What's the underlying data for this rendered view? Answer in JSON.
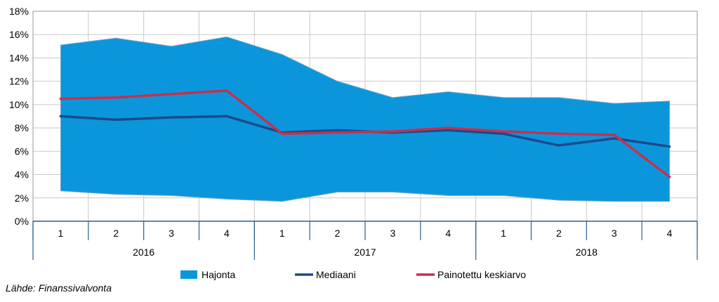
{
  "chart_data": {
    "type": "area",
    "categories": [
      "1",
      "2",
      "3",
      "4",
      "1",
      "2",
      "3",
      "4",
      "1",
      "2",
      "3",
      "4"
    ],
    "year_groups": [
      {
        "label": "2016",
        "span": 4
      },
      {
        "label": "2017",
        "span": 4
      },
      {
        "label": "2018",
        "span": 4
      }
    ],
    "y_ticks": [
      "0%",
      "2%",
      "4%",
      "6%",
      "8%",
      "10%",
      "12%",
      "14%",
      "16%",
      "18%"
    ],
    "ylim": [
      0,
      18
    ],
    "grid": true,
    "legend_position": "bottom",
    "series": [
      {
        "name": "Hajonta",
        "type": "range-area",
        "color": "#0b96dc",
        "upper": [
          15.1,
          15.7,
          15.0,
          15.8,
          14.3,
          12.0,
          10.6,
          11.1,
          10.6,
          10.6,
          10.1,
          10.3
        ],
        "lower": [
          2.6,
          2.3,
          2.2,
          1.9,
          1.7,
          2.5,
          2.5,
          2.2,
          2.2,
          1.8,
          1.7,
          1.7
        ]
      },
      {
        "name": "Mediaani",
        "type": "line",
        "color": "#1a4a8c",
        "values": [
          9.0,
          8.7,
          8.9,
          9.0,
          7.6,
          7.8,
          7.6,
          7.8,
          7.5,
          6.5,
          7.1,
          6.4
        ]
      },
      {
        "name": "Painotettu keskiarvo",
        "type": "line",
        "color": "#c8304a",
        "values": [
          10.5,
          10.6,
          10.9,
          11.2,
          7.5,
          7.6,
          7.7,
          8.0,
          7.7,
          7.5,
          7.4,
          3.8
        ]
      }
    ]
  },
  "source_note": "Lähde: Finanssivalvonta"
}
